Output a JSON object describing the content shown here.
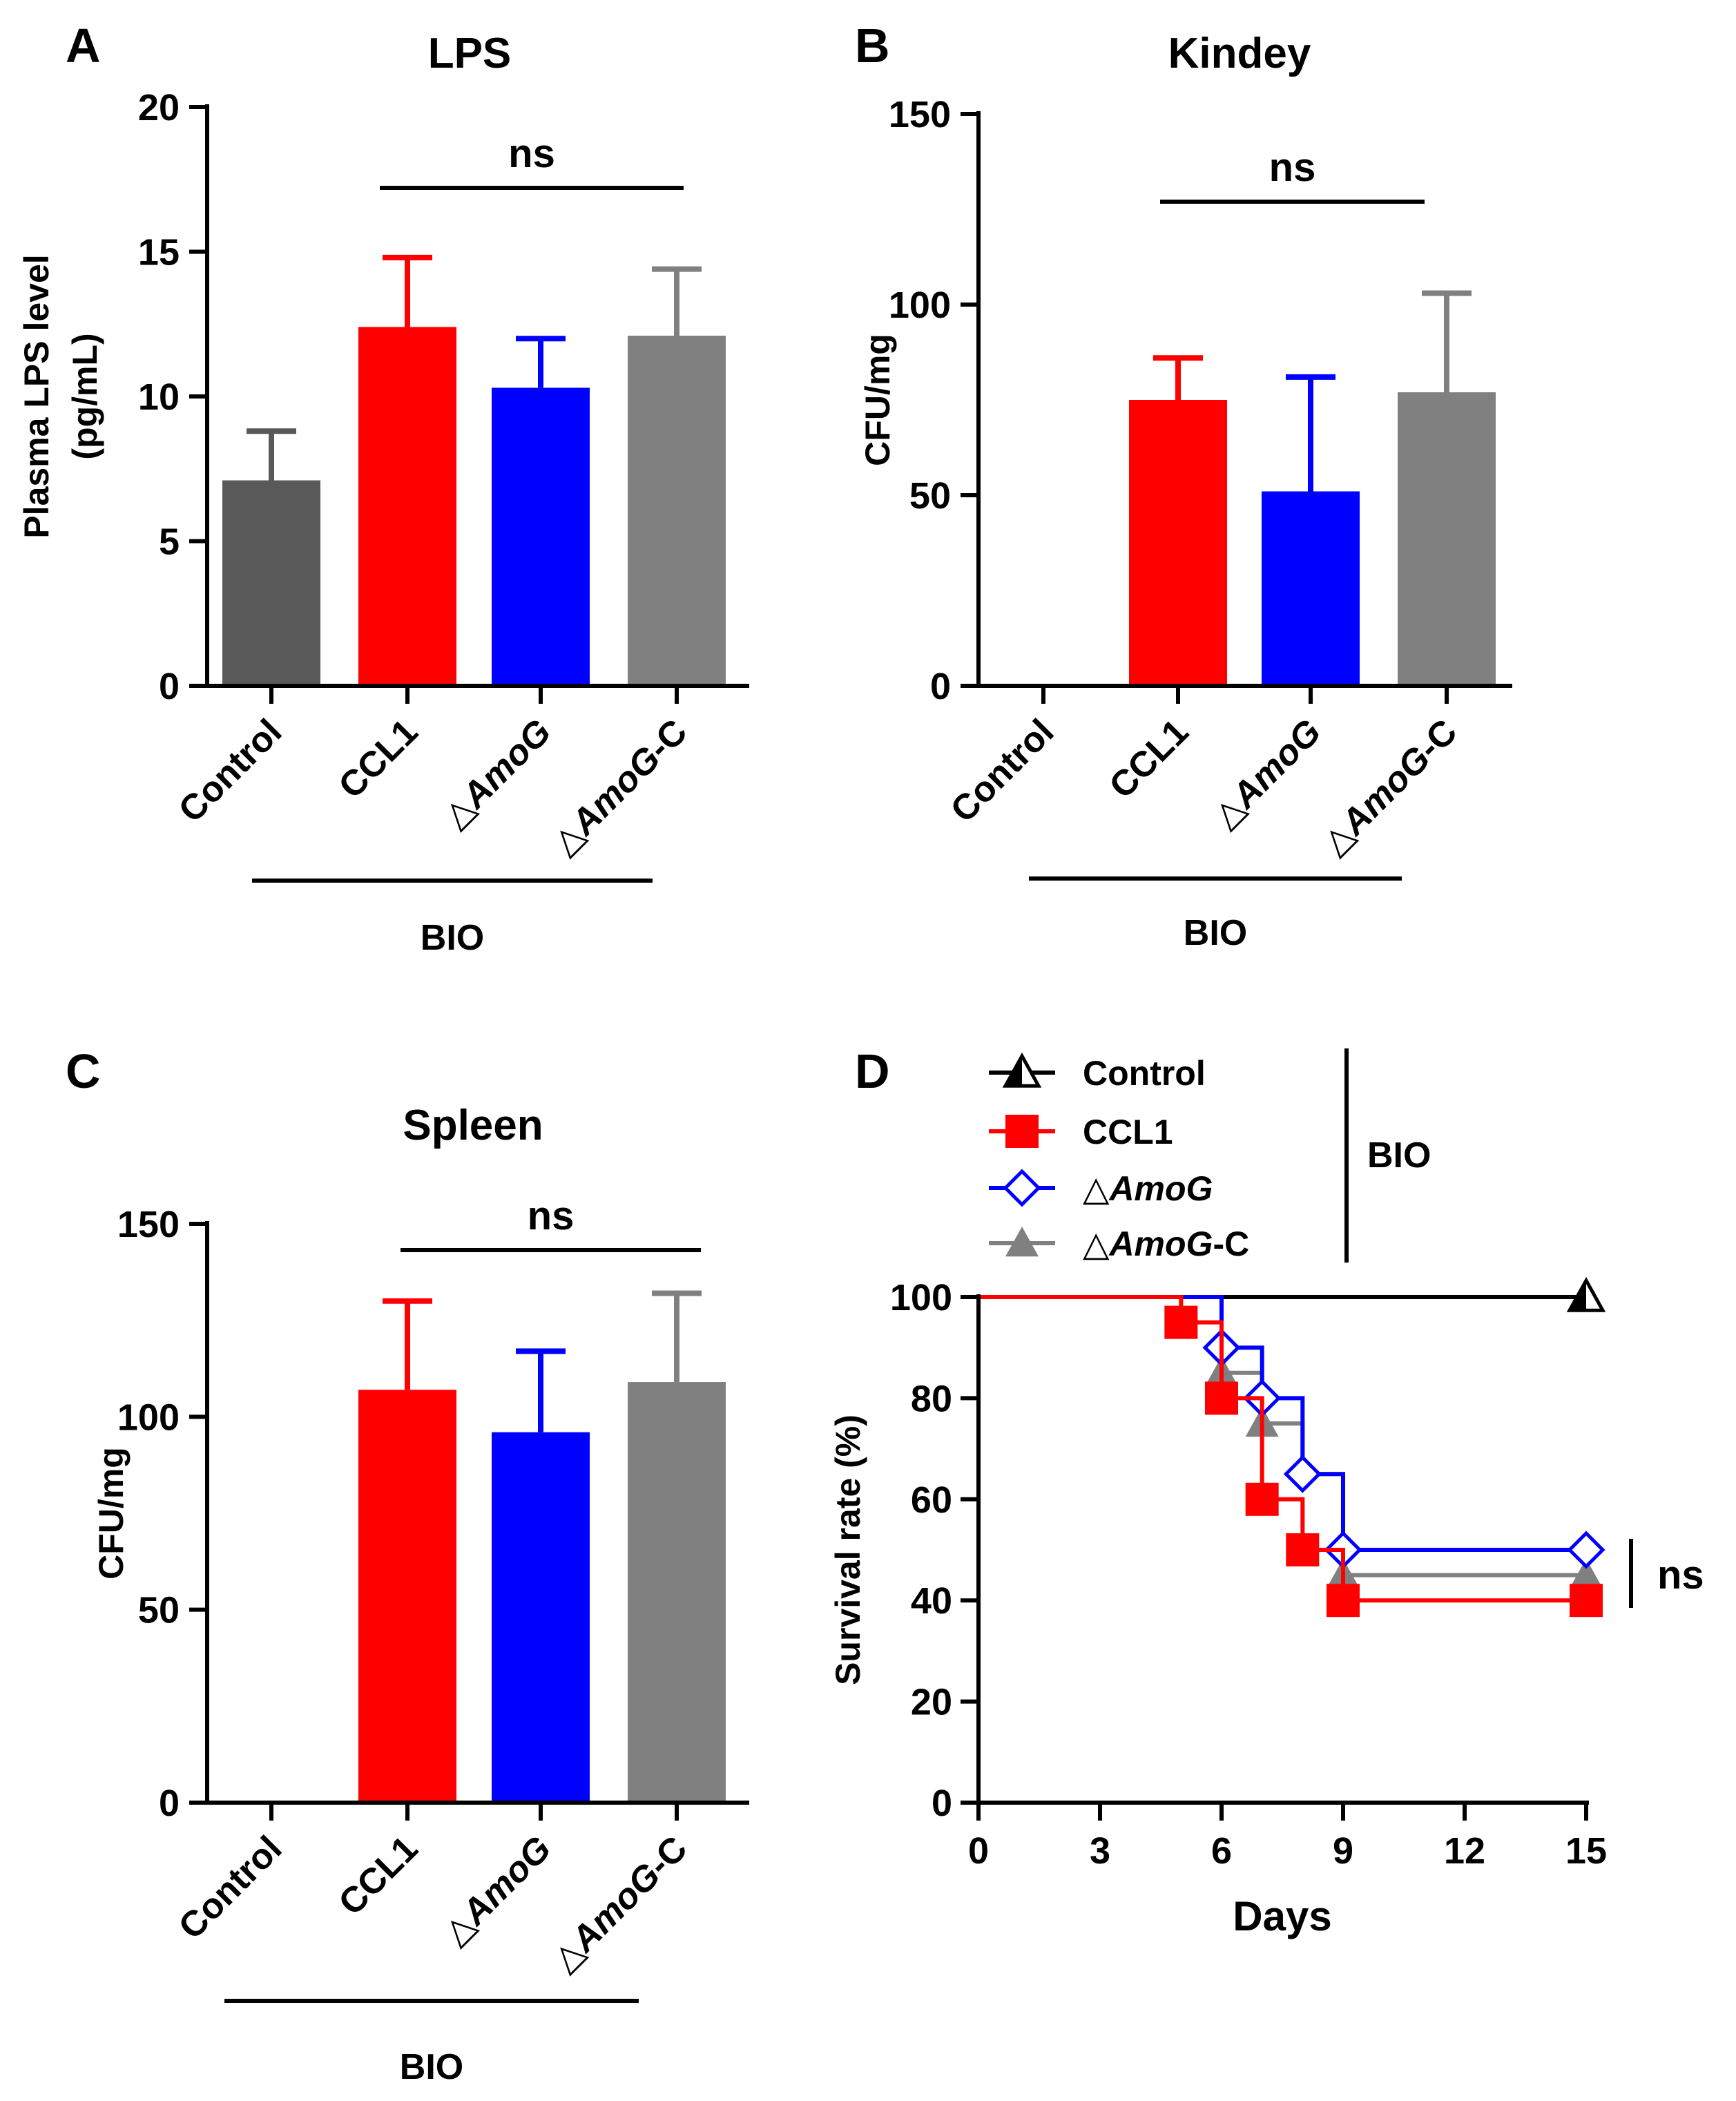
{
  "colors": {
    "control": "#595959",
    "ccl1": "#ff0000",
    "amog": "#0000ff",
    "amogc": "#808080",
    "axis": "#000000"
  },
  "chart_data": [
    {
      "panel": "A",
      "type": "bar",
      "title": "LPS",
      "ylabel_line1": "Plasma LPS level",
      "ylabel_line2": "(pg/mL)",
      "ylim": [
        0,
        20
      ],
      "yticks": [
        0,
        5,
        10,
        15,
        20
      ],
      "categories": [
        "Control",
        "CCL1",
        "△AmoG",
        "△AmoG-C"
      ],
      "values": [
        7.1,
        12.4,
        10.3,
        12.1
      ],
      "errors": [
        1.7,
        2.4,
        1.7,
        2.3
      ],
      "bar_colors": [
        "#595959",
        "#ff0000",
        "#0000ff",
        "#808080"
      ],
      "significance": "ns",
      "group_label": "BIO"
    },
    {
      "panel": "B",
      "type": "bar",
      "title": "Kindey",
      "ylabel": "CFU/mg",
      "ylim": [
        0,
        150
      ],
      "yticks": [
        0,
        50,
        100,
        150
      ],
      "categories": [
        "Control",
        "CCL1",
        "△AmoG",
        "△AmoG-C"
      ],
      "values": [
        0,
        75,
        51,
        77
      ],
      "errors": [
        0,
        11,
        30,
        26
      ],
      "bar_colors": [
        "#595959",
        "#ff0000",
        "#0000ff",
        "#808080"
      ],
      "significance": "ns",
      "group_label": "BIO"
    },
    {
      "panel": "C",
      "type": "bar",
      "title": "Spleen",
      "ylabel": "CFU/mg",
      "ylim": [
        0,
        150
      ],
      "yticks": [
        0,
        50,
        100,
        150
      ],
      "categories": [
        "Control",
        "CCL1",
        "△AmoG",
        "△AmoG-C"
      ],
      "values": [
        0,
        107,
        96,
        109
      ],
      "errors": [
        0,
        23,
        21,
        23
      ],
      "bar_colors": [
        "#595959",
        "#ff0000",
        "#0000ff",
        "#808080"
      ],
      "significance": "ns",
      "group_label": "BIO"
    },
    {
      "panel": "D",
      "type": "line",
      "subtype": "survival-step",
      "xlabel": "Days",
      "ylabel": "Survival rate (%)",
      "xlim": [
        0,
        15
      ],
      "ylim": [
        0,
        100
      ],
      "xticks": [
        0,
        3,
        6,
        9,
        12,
        15
      ],
      "yticks": [
        0,
        20,
        40,
        60,
        80,
        100
      ],
      "series": [
        {
          "name": "Control",
          "color": "#000000",
          "marker": "triangle-half",
          "points": [
            [
              0,
              100
            ],
            [
              15,
              100
            ]
          ],
          "markers": [
            [
              15,
              100
            ]
          ]
        },
        {
          "name": "CCL1",
          "color": "#ff0000",
          "marker": "square",
          "points": [
            [
              0,
              100
            ],
            [
              5,
              100
            ],
            [
              5,
              95
            ],
            [
              6,
              95
            ],
            [
              6,
              80
            ],
            [
              7,
              80
            ],
            [
              7,
              60
            ],
            [
              8,
              60
            ],
            [
              8,
              50
            ],
            [
              9,
              50
            ],
            [
              9,
              40
            ],
            [
              15,
              40
            ]
          ],
          "markers": [
            [
              5,
              95
            ],
            [
              6,
              80
            ],
            [
              7,
              60
            ],
            [
              8,
              50
            ],
            [
              9,
              40
            ],
            [
              15,
              40
            ]
          ]
        },
        {
          "name": "△AmoG",
          "color": "#0000ff",
          "marker": "diamond-open",
          "points": [
            [
              0,
              100
            ],
            [
              6,
              100
            ],
            [
              6,
              90
            ],
            [
              7,
              90
            ],
            [
              7,
              80
            ],
            [
              8,
              80
            ],
            [
              8,
              65
            ],
            [
              9,
              65
            ],
            [
              9,
              50
            ],
            [
              15,
              50
            ]
          ],
          "markers": [
            [
              6,
              90
            ],
            [
              7,
              80
            ],
            [
              8,
              65
            ],
            [
              9,
              50
            ],
            [
              15,
              50
            ]
          ]
        },
        {
          "name": "△AmoG-C",
          "color": "#808080",
          "marker": "triangle",
          "points": [
            [
              0,
              100
            ],
            [
              6,
              100
            ],
            [
              6,
              85
            ],
            [
              7,
              85
            ],
            [
              7,
              75
            ],
            [
              8,
              75
            ],
            [
              8,
              65
            ],
            [
              9,
              65
            ],
            [
              9,
              45
            ],
            [
              15,
              45
            ]
          ],
          "markers": [
            [
              6,
              85
            ],
            [
              7,
              75
            ],
            [
              9,
              45
            ],
            [
              15,
              45
            ]
          ]
        }
      ],
      "legend_group_label": "BIO",
      "significance": "ns"
    }
  ]
}
